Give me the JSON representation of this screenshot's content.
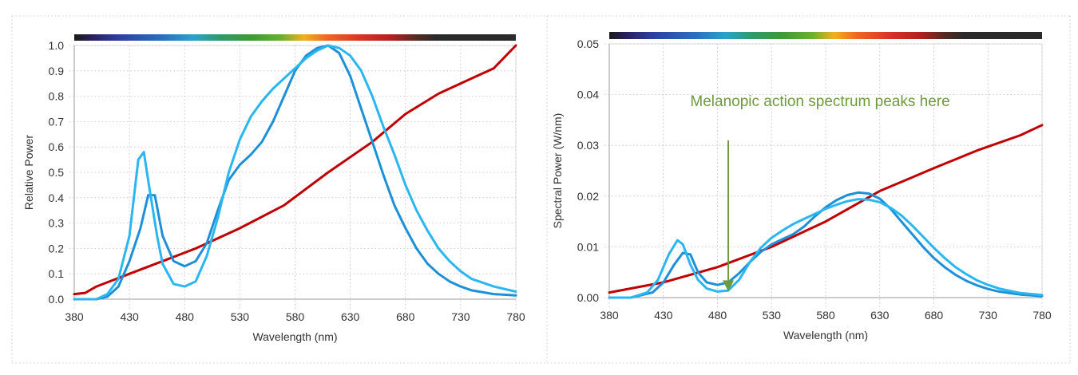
{
  "chart_data": [
    {
      "type": "line",
      "title": "",
      "xlabel": "Wavelength (nm)",
      "ylabel": "Relative Power",
      "xlim": [
        380,
        780
      ],
      "ylim": [
        0,
        1.0
      ],
      "x_ticks": [
        "380",
        "430",
        "480",
        "530",
        "580",
        "630",
        "680",
        "730",
        "780"
      ],
      "y_ticks": [
        "0.0",
        "0.1",
        "0.2",
        "0.3",
        "0.4",
        "0.5",
        "0.6",
        "0.7",
        "0.8",
        "0.9",
        "1.0"
      ],
      "grid": "dotted",
      "spectrum_bar": true,
      "series": [
        {
          "color": "#c00000",
          "points": [
            [
              380,
              0.02
            ],
            [
              390,
              0.025
            ],
            [
              400,
              0.05
            ],
            [
              430,
              0.1
            ],
            [
              460,
              0.15
            ],
            [
              490,
              0.2
            ],
            [
              530,
              0.28
            ],
            [
              570,
              0.37
            ],
            [
              610,
              0.5
            ],
            [
              650,
              0.62
            ],
            [
              680,
              0.73
            ],
            [
              710,
              0.81
            ],
            [
              740,
              0.87
            ],
            [
              760,
              0.91
            ],
            [
              780,
              1.0
            ]
          ]
        },
        {
          "color": "#1e90d8",
          "points": [
            [
              380,
              0.0
            ],
            [
              400,
              0.0
            ],
            [
              410,
              0.01
            ],
            [
              420,
              0.05
            ],
            [
              430,
              0.15
            ],
            [
              440,
              0.28
            ],
            [
              447,
              0.41
            ],
            [
              453,
              0.41
            ],
            [
              460,
              0.25
            ],
            [
              470,
              0.15
            ],
            [
              480,
              0.13
            ],
            [
              490,
              0.15
            ],
            [
              500,
              0.22
            ],
            [
              510,
              0.35
            ],
            [
              520,
              0.47
            ],
            [
              530,
              0.53
            ],
            [
              540,
              0.57
            ],
            [
              550,
              0.62
            ],
            [
              560,
              0.7
            ],
            [
              570,
              0.8
            ],
            [
              580,
              0.9
            ],
            [
              590,
              0.96
            ],
            [
              600,
              0.99
            ],
            [
              610,
              1.0
            ],
            [
              620,
              0.97
            ],
            [
              630,
              0.88
            ],
            [
              640,
              0.75
            ],
            [
              650,
              0.62
            ],
            [
              660,
              0.49
            ],
            [
              670,
              0.37
            ],
            [
              680,
              0.28
            ],
            [
              690,
              0.2
            ],
            [
              700,
              0.14
            ],
            [
              710,
              0.1
            ],
            [
              720,
              0.07
            ],
            [
              730,
              0.05
            ],
            [
              740,
              0.035
            ],
            [
              760,
              0.02
            ],
            [
              780,
              0.015
            ]
          ]
        },
        {
          "color": "#2ab6f0",
          "points": [
            [
              380,
              0.0
            ],
            [
              400,
              0.0
            ],
            [
              410,
              0.02
            ],
            [
              420,
              0.08
            ],
            [
              430,
              0.25
            ],
            [
              438,
              0.55
            ],
            [
              443,
              0.58
            ],
            [
              448,
              0.44
            ],
            [
              455,
              0.25
            ],
            [
              460,
              0.14
            ],
            [
              470,
              0.06
            ],
            [
              480,
              0.05
            ],
            [
              490,
              0.07
            ],
            [
              500,
              0.17
            ],
            [
              510,
              0.32
            ],
            [
              520,
              0.5
            ],
            [
              530,
              0.63
            ],
            [
              540,
              0.72
            ],
            [
              550,
              0.78
            ],
            [
              560,
              0.83
            ],
            [
              570,
              0.87
            ],
            [
              580,
              0.91
            ],
            [
              590,
              0.95
            ],
            [
              600,
              0.98
            ],
            [
              610,
              1.0
            ],
            [
              620,
              0.99
            ],
            [
              630,
              0.96
            ],
            [
              640,
              0.9
            ],
            [
              650,
              0.8
            ],
            [
              660,
              0.68
            ],
            [
              670,
              0.57
            ],
            [
              680,
              0.45
            ],
            [
              690,
              0.35
            ],
            [
              700,
              0.27
            ],
            [
              710,
              0.2
            ],
            [
              720,
              0.15
            ],
            [
              730,
              0.11
            ],
            [
              740,
              0.08
            ],
            [
              760,
              0.05
            ],
            [
              780,
              0.03
            ]
          ]
        }
      ]
    },
    {
      "type": "line",
      "title": "",
      "xlabel": "Wavelength (nm)",
      "ylabel": "Spectral Power (W/nm)",
      "xlim": [
        380,
        780
      ],
      "ylim": [
        0,
        0.05
      ],
      "x_ticks": [
        "380",
        "430",
        "480",
        "530",
        "580",
        "630",
        "680",
        "730",
        "780"
      ],
      "y_ticks": [
        "0.00",
        "0.01",
        "0.02",
        "0.03",
        "0.04",
        "0.05"
      ],
      "grid": "dotted",
      "spectrum_bar": true,
      "annotation": {
        "text": "Melanopic action spectrum peaks here",
        "x": 490,
        "y_from": 0.031,
        "y_to": 0.0012,
        "color": "#6e9a3e"
      },
      "series": [
        {
          "color": "#c00000",
          "points": [
            [
              380,
              0.001
            ],
            [
              430,
              0.003
            ],
            [
              480,
              0.006
            ],
            [
              530,
              0.01
            ],
            [
              580,
              0.015
            ],
            [
              630,
              0.021
            ],
            [
              680,
              0.0255
            ],
            [
              720,
              0.029
            ],
            [
              760,
              0.032
            ],
            [
              780,
              0.034
            ]
          ]
        },
        {
          "color": "#1e90d8",
          "points": [
            [
              380,
              0.0
            ],
            [
              400,
              0.0
            ],
            [
              420,
              0.001
            ],
            [
              430,
              0.003
            ],
            [
              440,
              0.0065
            ],
            [
              448,
              0.0088
            ],
            [
              455,
              0.0085
            ],
            [
              462,
              0.005
            ],
            [
              470,
              0.003
            ],
            [
              480,
              0.0025
            ],
            [
              490,
              0.003
            ],
            [
              500,
              0.0048
            ],
            [
              510,
              0.007
            ],
            [
              520,
              0.009
            ],
            [
              530,
              0.0105
            ],
            [
              540,
              0.0115
            ],
            [
              550,
              0.0125
            ],
            [
              560,
              0.014
            ],
            [
              570,
              0.016
            ],
            [
              580,
              0.0178
            ],
            [
              590,
              0.0192
            ],
            [
              600,
              0.0202
            ],
            [
              610,
              0.0207
            ],
            [
              620,
              0.0205
            ],
            [
              630,
              0.0195
            ],
            [
              640,
              0.0175
            ],
            [
              650,
              0.015
            ],
            [
              660,
              0.0125
            ],
            [
              670,
              0.01
            ],
            [
              680,
              0.0078
            ],
            [
              690,
              0.006
            ],
            [
              700,
              0.0045
            ],
            [
              710,
              0.0033
            ],
            [
              720,
              0.0024
            ],
            [
              730,
              0.0017
            ],
            [
              740,
              0.0012
            ],
            [
              760,
              0.0006
            ],
            [
              780,
              0.0003
            ]
          ]
        },
        {
          "color": "#2ab6f0",
          "points": [
            [
              380,
              0.0
            ],
            [
              400,
              0.0
            ],
            [
              415,
              0.001
            ],
            [
              425,
              0.0035
            ],
            [
              435,
              0.0085
            ],
            [
              443,
              0.0113
            ],
            [
              448,
              0.0105
            ],
            [
              455,
              0.0065
            ],
            [
              462,
              0.0035
            ],
            [
              470,
              0.0018
            ],
            [
              480,
              0.0012
            ],
            [
              490,
              0.0014
            ],
            [
              500,
              0.0035
            ],
            [
              510,
              0.007
            ],
            [
              520,
              0.0098
            ],
            [
              530,
              0.0118
            ],
            [
              540,
              0.0132
            ],
            [
              550,
              0.0145
            ],
            [
              560,
              0.0155
            ],
            [
              570,
              0.0165
            ],
            [
              580,
              0.0175
            ],
            [
              590,
              0.0183
            ],
            [
              600,
              0.019
            ],
            [
              610,
              0.0194
            ],
            [
              620,
              0.0193
            ],
            [
              630,
              0.0188
            ],
            [
              640,
              0.0177
            ],
            [
              650,
              0.0162
            ],
            [
              660,
              0.0142
            ],
            [
              670,
              0.012
            ],
            [
              680,
              0.0098
            ],
            [
              690,
              0.0078
            ],
            [
              700,
              0.006
            ],
            [
              710,
              0.0046
            ],
            [
              720,
              0.0034
            ],
            [
              730,
              0.0025
            ],
            [
              740,
              0.0018
            ],
            [
              760,
              0.0009
            ],
            [
              780,
              0.0005
            ]
          ]
        }
      ]
    }
  ]
}
